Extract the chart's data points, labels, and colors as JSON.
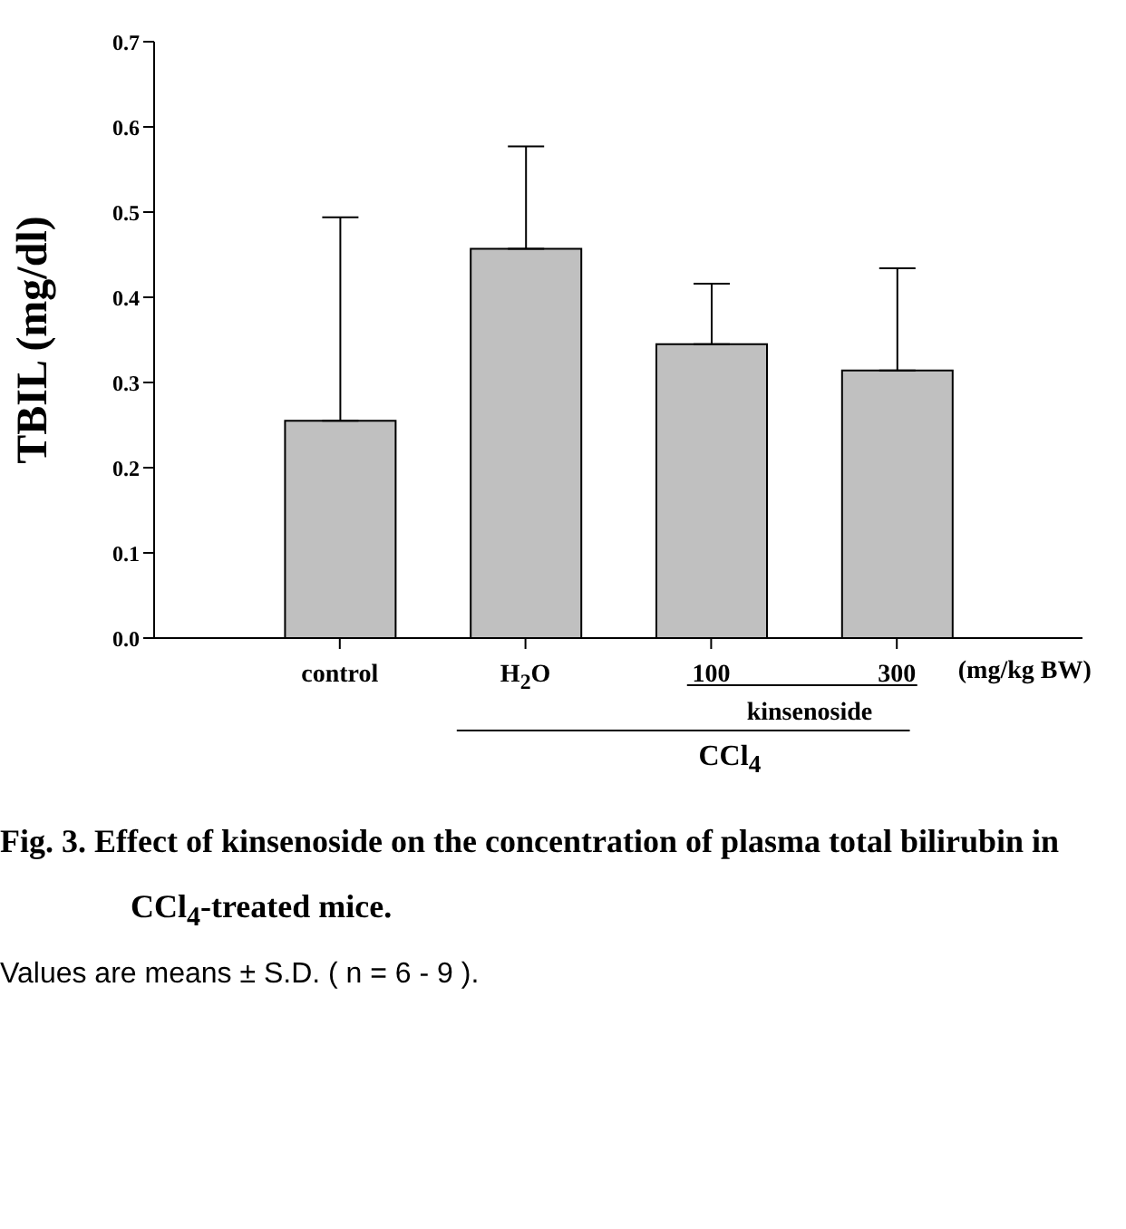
{
  "chart_data": {
    "type": "bar",
    "title": "Fig. 3.    Effect of kinsenoside on the concentration of plasma total bilirubin in CCl$_{4}$-treated mice.",
    "ylabel": "TBIL (mg/dl)",
    "categories": [
      "control",
      "H$_{2}$O",
      "100",
      "300"
    ],
    "values": [
      0.255,
      0.457,
      0.345,
      0.314
    ],
    "errors": [
      [
        0.255,
        0.494
      ],
      [
        0.457,
        0.577
      ],
      [
        0.345,
        0.416
      ],
      [
        0.314,
        0.434
      ]
    ],
    "color": "#c0c0c0",
    "ylim": [
      0,
      0.7
    ],
    "yticks": [
      {
        "value": 0,
        "label": "0.0"
      },
      0.1,
      0.2,
      0.3,
      0.4,
      0.5,
      0.6,
      0.7
    ],
    "grid": false,
    "legend": false,
    "annotations": [
      "(mg/kg BW)",
      "kinsenoside",
      "CCl$_{4}$",
      "Values are means ± S.D. ( n = 6 - 9 )."
    ]
  }
}
